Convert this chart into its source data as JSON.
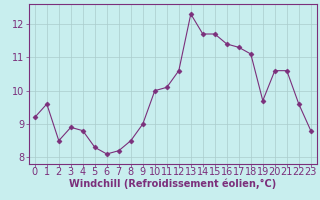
{
  "x": [
    0,
    1,
    2,
    3,
    4,
    5,
    6,
    7,
    8,
    9,
    10,
    11,
    12,
    13,
    14,
    15,
    16,
    17,
    18,
    19,
    20,
    21,
    22,
    23
  ],
  "y": [
    9.2,
    9.6,
    8.5,
    8.9,
    8.8,
    8.3,
    8.1,
    8.2,
    8.5,
    9.0,
    10.0,
    10.1,
    10.6,
    12.3,
    11.7,
    11.7,
    11.4,
    11.3,
    11.1,
    9.7,
    10.6,
    10.6,
    9.6,
    8.8
  ],
  "line_color": "#7b2f7b",
  "marker": "D",
  "marker_size": 2.5,
  "bg_color": "#c8eeee",
  "grid_color": "#aacccc",
  "xlabel": "Windchill (Refroidissement éolien,°C)",
  "xlabel_color": "#7b2f7b",
  "tick_color": "#7b2f7b",
  "spine_color": "#7b2f7b",
  "ylim": [
    7.8,
    12.6
  ],
  "xlim": [
    -0.5,
    23.5
  ],
  "yticks": [
    8,
    9,
    10,
    11,
    12
  ],
  "xticks": [
    0,
    1,
    2,
    3,
    4,
    5,
    6,
    7,
    8,
    9,
    10,
    11,
    12,
    13,
    14,
    15,
    16,
    17,
    18,
    19,
    20,
    21,
    22,
    23
  ],
  "tick_fontsize": 7,
  "xlabel_fontsize": 7,
  "line_width": 0.8
}
